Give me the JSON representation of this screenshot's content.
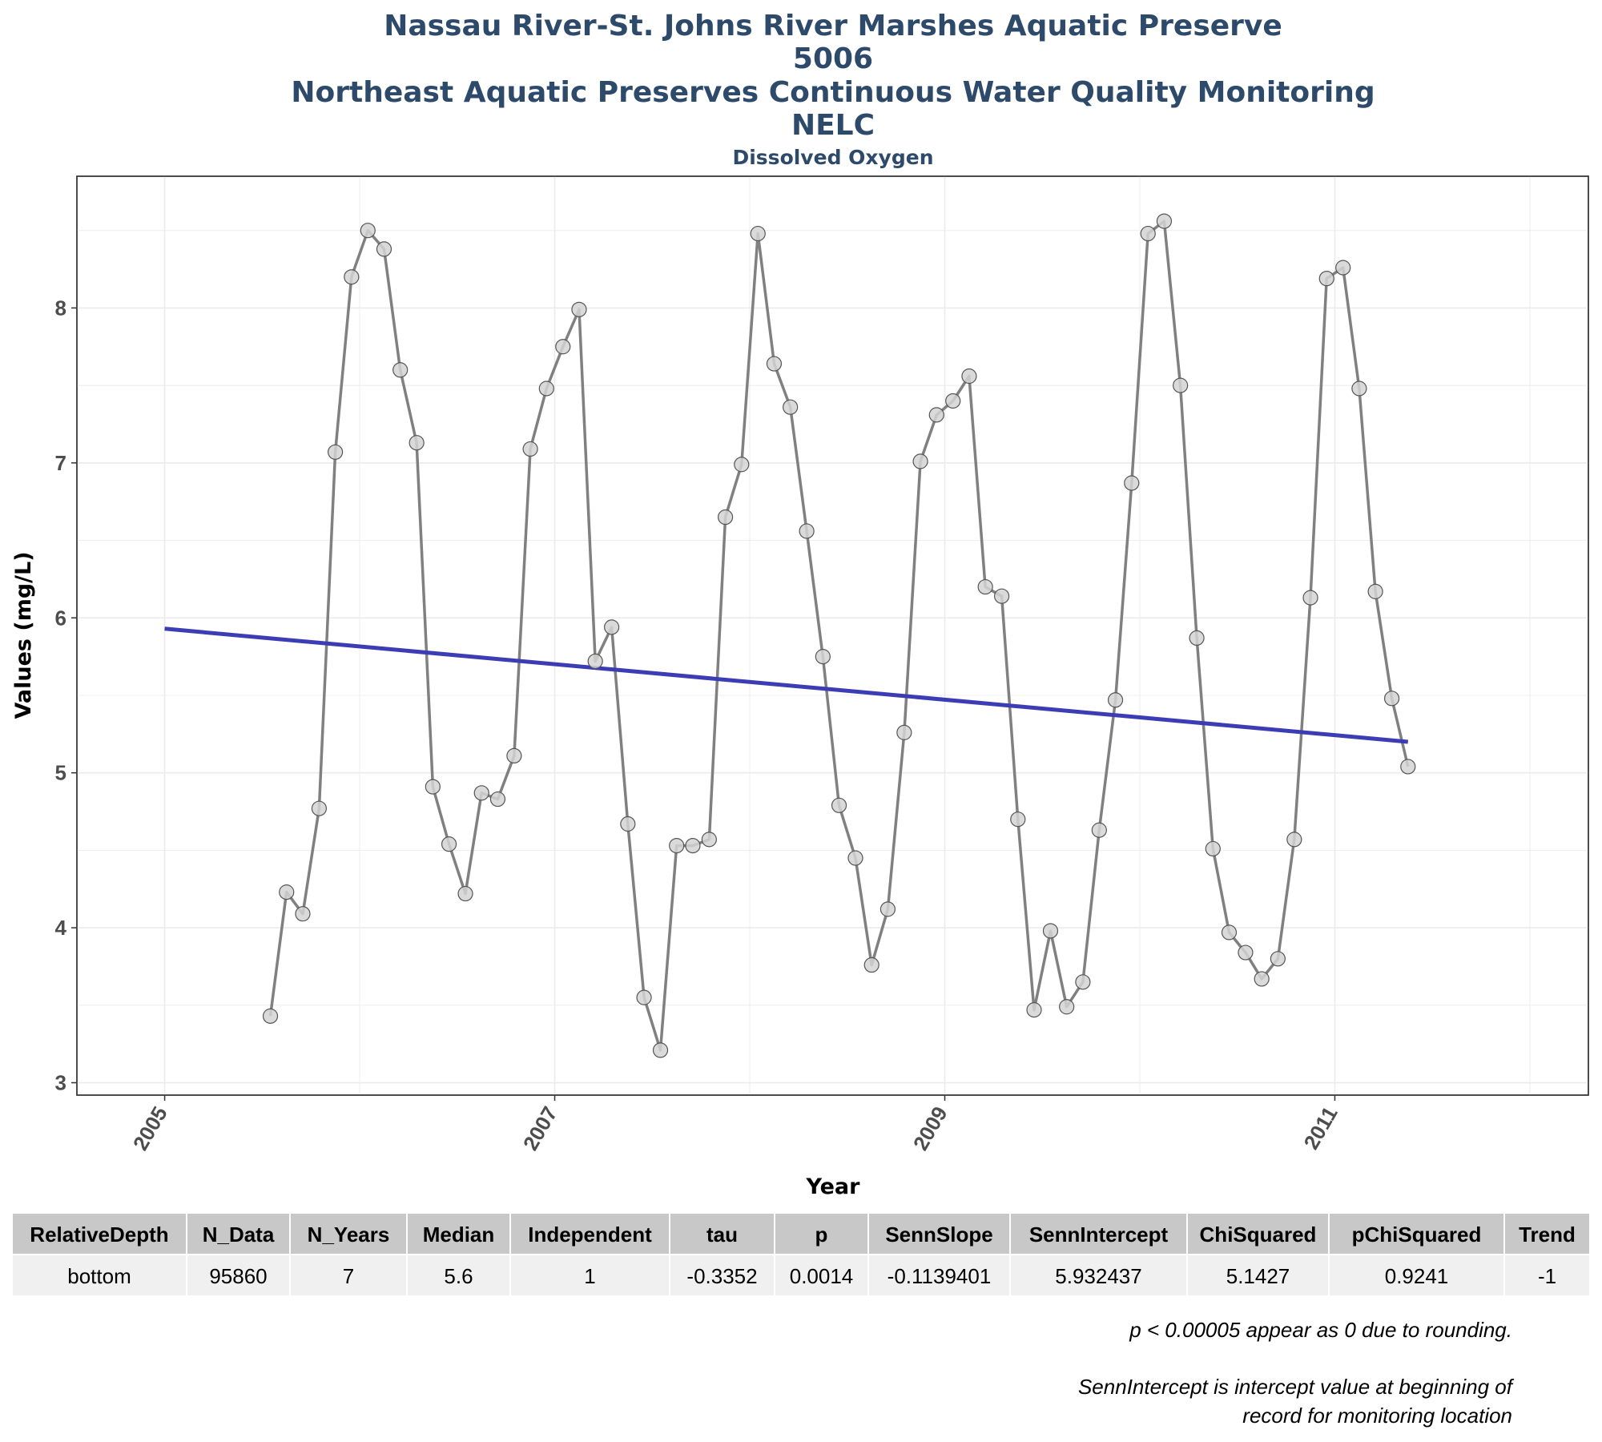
{
  "titles": {
    "line1": "Nassau River-St. Johns River Marshes Aquatic Preserve",
    "line2": "5006",
    "line3": "Northeast Aquatic Preserves Continuous Water Quality Monitoring",
    "line4": "NELC",
    "subtitle": "Dissolved Oxygen"
  },
  "colors": {
    "title": "#2e4a6b",
    "series_line": "#808080",
    "point_fill": "#d3d3d3",
    "point_stroke": "#555555",
    "trend_line": "#3c3cb4",
    "grid": "#ebebeb",
    "table_header_bg": "#c8c8c8",
    "table_row_bg": "#f0f0f0"
  },
  "chart_data": {
    "type": "line",
    "title": "Nassau River-St. Johns River Marshes Aquatic Preserve",
    "xlabel": "Year",
    "ylabel": "Values (mg/L)",
    "xlim": [
      2004.55,
      2012.3
    ],
    "ylim": [
      2.92,
      8.85
    ],
    "x_ticks": [
      2005,
      2007,
      2009,
      2011
    ],
    "x_tick_labels": [
      "2005",
      "2007",
      "2009",
      "2011"
    ],
    "y_ticks": [
      3,
      4,
      5,
      6,
      7,
      8
    ],
    "y_tick_labels": [
      "3",
      "4",
      "5",
      "6",
      "7",
      "8"
    ],
    "grid": true,
    "series": [
      {
        "x": [
          2005.542,
          2005.625,
          2005.708,
          2005.792,
          2005.875,
          2005.958,
          2006.042,
          2006.125,
          2006.208,
          2006.292,
          2006.375,
          2006.458,
          2006.542,
          2006.625,
          2006.708,
          2006.792,
          2006.875,
          2006.958,
          2007.042,
          2007.125,
          2007.208,
          2007.292,
          2007.375,
          2007.458,
          2007.542,
          2007.625,
          2007.708,
          2007.792,
          2007.875,
          2007.958,
          2008.042,
          2008.125,
          2008.208,
          2008.292,
          2008.375,
          2008.458,
          2008.542,
          2008.625,
          2008.708,
          2008.792,
          2008.875,
          2008.958,
          2009.042,
          2009.125,
          2009.208,
          2009.292,
          2009.375,
          2009.458,
          2009.542,
          2009.625,
          2009.708,
          2009.792,
          2009.875,
          2009.958,
          2010.042,
          2010.125,
          2010.208,
          2010.292,
          2010.375,
          2010.458,
          2010.542,
          2010.625,
          2010.708,
          2010.792,
          2010.875,
          2010.958,
          2011.042,
          2011.125,
          2011.208,
          2011.292,
          2011.375
        ],
        "values": [
          3.43,
          4.23,
          4.09,
          4.77,
          7.07,
          8.2,
          8.5,
          8.38,
          7.6,
          7.13,
          4.91,
          4.54,
          4.22,
          4.87,
          4.83,
          5.11,
          7.09,
          7.48,
          7.75,
          7.99,
          5.72,
          5.94,
          4.67,
          3.55,
          3.21,
          4.53,
          4.53,
          4.57,
          6.65,
          6.99,
          8.48,
          7.64,
          7.36,
          6.56,
          5.75,
          4.79,
          4.45,
          3.76,
          4.12,
          5.26,
          7.01,
          7.31,
          7.4,
          7.56,
          6.2,
          6.14,
          4.7,
          3.47,
          3.98,
          3.49,
          3.65,
          4.63,
          5.47,
          6.87,
          8.48,
          8.56,
          7.5,
          5.87,
          4.51,
          3.97,
          3.84,
          3.67,
          3.8,
          4.57,
          6.13,
          8.19,
          8.26,
          7.48,
          6.17,
          5.48,
          5.04
        ]
      }
    ],
    "trend": {
      "x": [
        2005.0,
        2011.375
      ],
      "values": [
        5.93,
        5.2
      ]
    }
  },
  "table": {
    "headers": [
      "RelativeDepth",
      "N_Data",
      "N_Years",
      "Median",
      "Independent",
      "tau",
      "p",
      "SennSlope",
      "SennIntercept",
      "ChiSquared",
      "pChiSquared",
      "Trend"
    ],
    "row": [
      "bottom",
      "95860",
      "7",
      "5.6",
      "1",
      "-0.3352",
      "0.0014",
      "-0.1139401",
      "5.932437",
      "5.1427",
      "0.9241",
      "-1"
    ]
  },
  "footnotes": {
    "note1": "p < 0.00005 appear as 0 due to rounding.",
    "note2_line1": "SennIntercept is intercept value at beginning of",
    "note2_line2": "record for monitoring location"
  }
}
